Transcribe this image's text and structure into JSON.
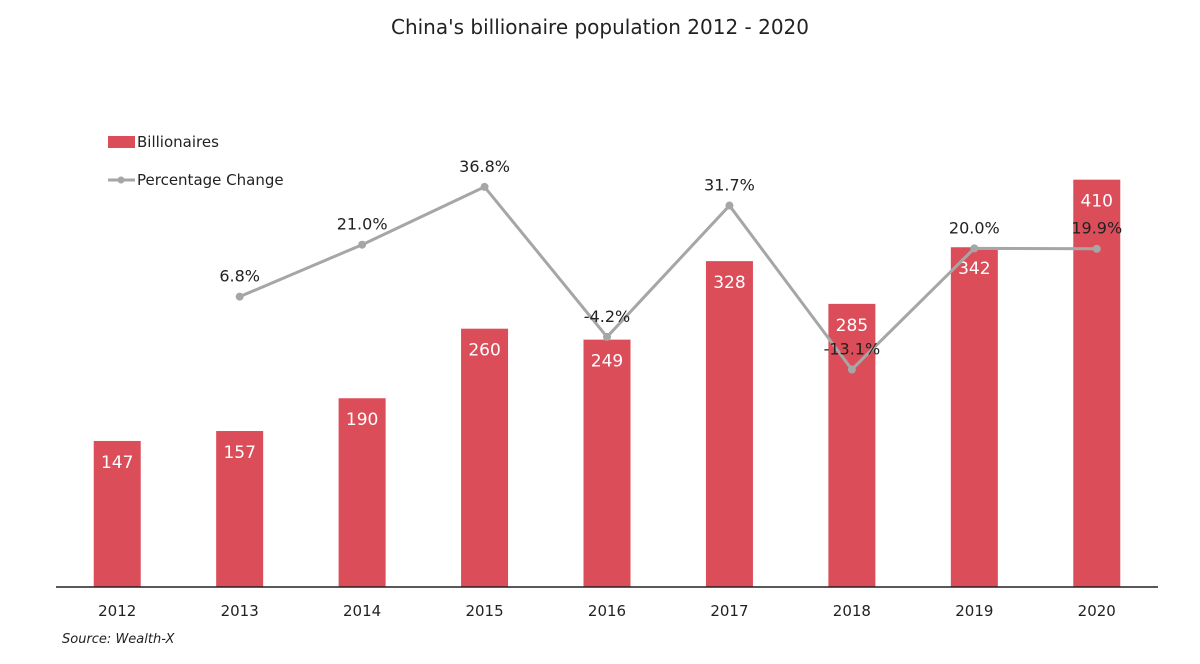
{
  "chart_data": {
    "type": "bar",
    "title": "China's billionaire population 2012 - 2020",
    "categories": [
      "2012",
      "2013",
      "2014",
      "2015",
      "2016",
      "2017",
      "2018",
      "2019",
      "2020"
    ],
    "series": [
      {
        "name": "Billionaires",
        "type": "bar",
        "values": [
          147,
          157,
          190,
          260,
          249,
          328,
          285,
          342,
          410
        ],
        "labels": [
          "147",
          "157",
          "190",
          "260",
          "249",
          "328",
          "285",
          "342",
          "410"
        ],
        "color": "#dc4d5a"
      },
      {
        "name": "Percentage Change",
        "type": "line",
        "values": [
          null,
          6.8,
          21.0,
          36.8,
          -4.2,
          31.7,
          -13.1,
          20.0,
          19.9
        ],
        "labels": [
          "",
          "6.8%",
          "21.0%",
          "36.8%",
          "-4.2%",
          "31.7%",
          "-13.1%",
          "20.0%",
          "19.9%"
        ],
        "color": "#a6a6a6"
      }
    ],
    "ylim": [
      0,
      460
    ],
    "y2lim": [
      -75,
      60
    ],
    "xlabel": "",
    "ylabel": "",
    "grid": false,
    "legend_position": "top-left",
    "source": "Source: Wealth-X"
  }
}
